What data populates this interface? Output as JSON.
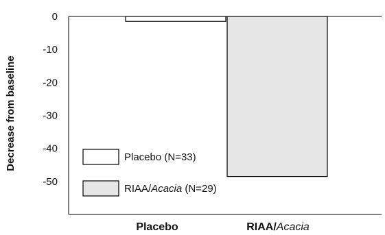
{
  "chart_data": {
    "type": "bar",
    "categories": [
      "Placebo",
      "RIAA/Acacia"
    ],
    "category_parts": [
      {
        "plain": "Placebo",
        "italic": ""
      },
      {
        "plain": "RIAA/",
        "italic": "Acacia"
      }
    ],
    "values": [
      -1.5,
      -48.5
    ],
    "ylabel": "Decrease from baseline",
    "ylim": [
      -60,
      0
    ],
    "yticks": [
      0,
      -10,
      -20,
      -30,
      -40,
      -50
    ],
    "colors": [
      "#ffffff",
      "#e6e6e6"
    ],
    "legend": {
      "placement": "bottom-left",
      "entries": [
        {
          "plain": "Placebo (N=33)",
          "italic": "",
          "suffix": ""
        },
        {
          "plain": "RIAA/",
          "italic": "Acacia",
          "suffix": " (N=29)"
        }
      ]
    },
    "grid": false
  }
}
